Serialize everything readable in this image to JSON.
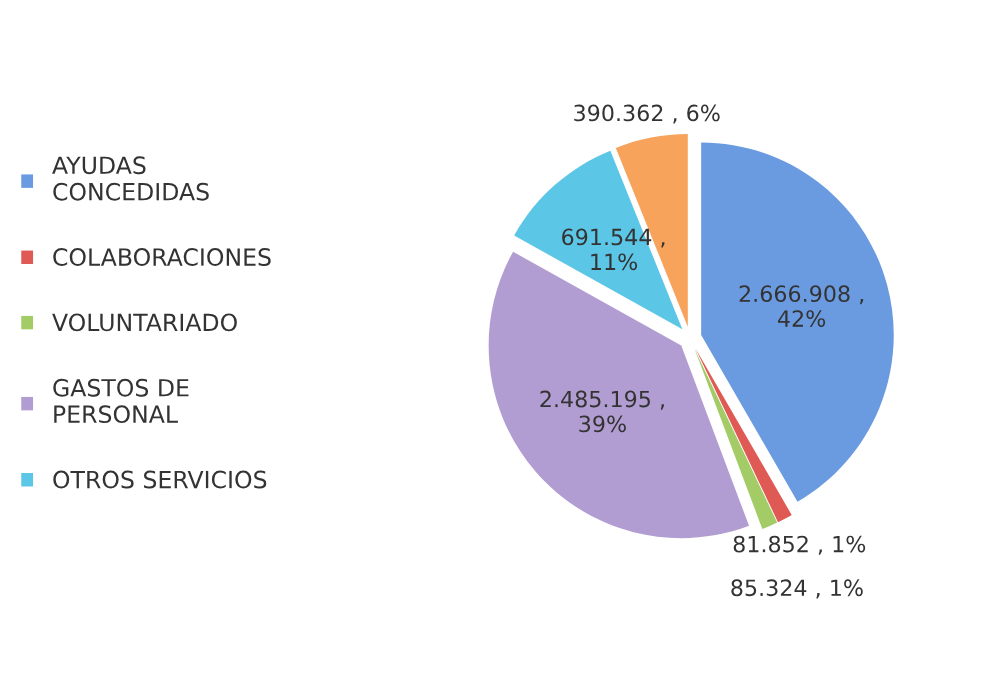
{
  "chart_data": {
    "type": "pie",
    "categories": [
      "AYUDAS\nCONCEDIDAS",
      "COLABORACIONES",
      "VOLUNTARIADO",
      "GASTOS DE\nPERSONAL",
      "OTROS SERVICIOS",
      null
    ],
    "values": [
      2666908,
      81852,
      85324,
      2485195,
      691544,
      390362
    ],
    "colors": [
      "#6a9be0",
      "#e05a55",
      "#a3cc66",
      "#b29dd2",
      "#5cc6e6",
      "#f7a35c"
    ],
    "value_labels": [
      "2.666.908 ,\n42%",
      "81.852 , 1%",
      "85.324 , 1%",
      "2.485.195 ,\n39%",
      "691.544 ,\n11%",
      "390.362 , 6%"
    ],
    "legend": "left"
  }
}
